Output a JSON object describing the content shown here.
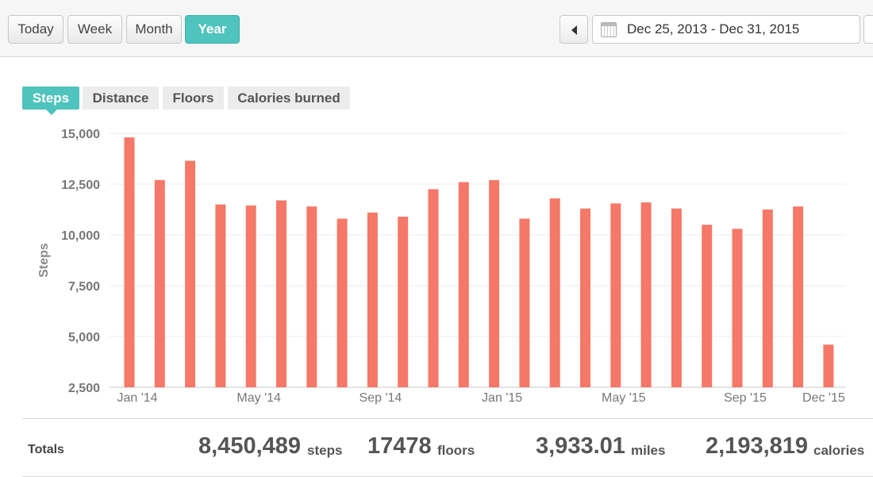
{
  "periods": [
    "Today",
    "Week",
    "Month",
    "Year"
  ],
  "active_period": "Year",
  "date_range": "Dec 25, 2013 - Dec 31, 2015",
  "metric_tabs": [
    "Steps",
    "Distance",
    "Floors",
    "Calories burned"
  ],
  "active_metric": "Steps",
  "colors": {
    "accent": "#4fc3bd",
    "bar": "#f57868"
  },
  "chart_data": {
    "type": "bar",
    "title": "",
    "xlabel": "",
    "ylabel": "Steps",
    "ylim": [
      2500,
      15000
    ],
    "yticks": [
      "15,000",
      "12,500",
      "10,000",
      "7,500",
      "5,000",
      "2,500"
    ],
    "ytick_values": [
      15000,
      12500,
      10000,
      7500,
      5000,
      2500
    ],
    "grid": true,
    "categories": [
      "Jan '14",
      "Feb '14",
      "Mar '14",
      "Apr '14",
      "May '14",
      "Jun '14",
      "Jul '14",
      "Aug '14",
      "Sep '14",
      "Oct '14",
      "Nov '14",
      "Dec '14",
      "Jan '15",
      "Feb '15",
      "Mar '15",
      "Apr '15",
      "May '15",
      "Jun '15",
      "Jul '15",
      "Aug '15",
      "Sep '15",
      "Oct '15",
      "Nov '15",
      "Dec '15"
    ],
    "x_tick_labels": [
      "Jan '14",
      "May '14",
      "Sep '14",
      "Jan '15",
      "May '15",
      "Sep '15",
      "Dec '15"
    ],
    "x_tick_indices": [
      0,
      4,
      8,
      12,
      16,
      20,
      23
    ],
    "values": [
      14800,
      12700,
      13650,
      11500,
      11450,
      11700,
      11400,
      10800,
      11100,
      10900,
      12250,
      12600,
      12700,
      10800,
      11800,
      11300,
      11550,
      11600,
      11300,
      10500,
      10300,
      11250,
      11400,
      4600
    ]
  },
  "totals": {
    "label": "Totals",
    "steps": {
      "value": "8,450,489",
      "unit": "steps"
    },
    "floors": {
      "value": "17478",
      "unit": "floors"
    },
    "miles": {
      "value": "3,933.01",
      "unit": "miles"
    },
    "calories": {
      "value": "2,193,819",
      "unit": "calories"
    }
  }
}
